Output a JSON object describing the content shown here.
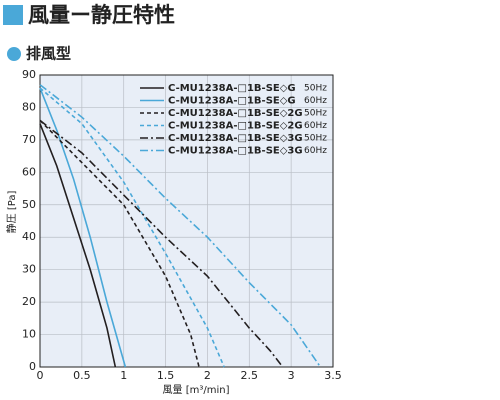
{
  "chart_data": {
    "type": "line",
    "title": "風量ー静圧特性",
    "subtitle": "排風型",
    "x_label": "風量 [m³/min]",
    "y_label": "静圧 [Pa]",
    "xlim": [
      0,
      3.5
    ],
    "ylim": [
      0,
      90
    ],
    "xticks": [
      0,
      0.5,
      1,
      1.5,
      2,
      2.5,
      3,
      3.5
    ],
    "yticks": [
      0,
      10,
      20,
      30,
      40,
      50,
      60,
      70,
      80,
      90
    ],
    "grid": true,
    "legend": "upper right",
    "series": [
      {
        "name": "C-MU1238A-□1B-SE◇G",
        "frequency": "50Hz",
        "color": "#231f20",
        "dash": "solid",
        "x": [
          0,
          0.2,
          0.4,
          0.6,
          0.8,
          0.9
        ],
        "values": [
          75,
          62,
          46,
          30,
          12,
          0
        ]
      },
      {
        "name": "C-MU1238A-□1B-SE◇G",
        "frequency": "60Hz",
        "color": "#4aa8d8",
        "dash": "solid",
        "x": [
          0,
          0.2,
          0.4,
          0.6,
          0.8,
          1.02
        ],
        "values": [
          86,
          73,
          58,
          40,
          20,
          0
        ]
      },
      {
        "name": "C-MU1238A-□1B-SE◇2G",
        "frequency": "50Hz",
        "color": "#231f20",
        "dash": "dashed",
        "x": [
          0,
          0.5,
          1,
          1.5,
          1.8,
          1.9
        ],
        "values": [
          76,
          63,
          50,
          28,
          10,
          0
        ]
      },
      {
        "name": "C-MU1238A-□1B-SE◇2G",
        "frequency": "60Hz",
        "color": "#4aa8d8",
        "dash": "dashed",
        "x": [
          0,
          0.5,
          1,
          1.5,
          2,
          2.2
        ],
        "values": [
          86,
          75,
          57,
          35,
          12,
          0
        ]
      },
      {
        "name": "C-MU1238A-□1B-SE◇3G",
        "frequency": "50Hz",
        "color": "#231f20",
        "dash": "dashdot",
        "x": [
          0,
          0.5,
          1,
          1.5,
          2,
          2.5,
          2.75,
          2.9
        ],
        "values": [
          76,
          66,
          53,
          40,
          28,
          12,
          5,
          0
        ]
      },
      {
        "name": "C-MU1238A-□1B-SE◇3G",
        "frequency": "60Hz",
        "color": "#4aa8d8",
        "dash": "dashdot",
        "x": [
          0,
          0.5,
          1,
          1.5,
          2,
          2.5,
          3,
          3.35
        ],
        "values": [
          87,
          77,
          65,
          52,
          40,
          26,
          13,
          0
        ]
      }
    ]
  }
}
